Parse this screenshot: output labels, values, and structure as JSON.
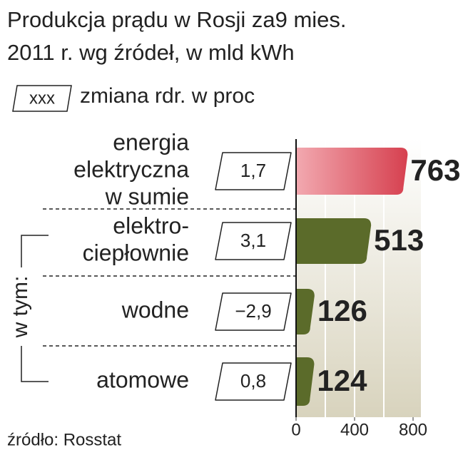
{
  "chart_data": {
    "type": "bar",
    "orientation": "horizontal",
    "title_lines": [
      "Produkcja prądu w Rosji za9 mies.",
      "2011 r. wg źródeł, w mld kWh"
    ],
    "legend": {
      "box_label": "xxx",
      "text": "zmiana rdr. w proc"
    },
    "categories": [
      [
        "energia",
        "elektryczna",
        "w sumie"
      ],
      [
        "elektro-",
        "ciepłownie"
      ],
      [
        "wodne"
      ],
      [
        "atomowe"
      ]
    ],
    "group_label": "w tym:",
    "values": [
      763,
      513,
      126,
      124
    ],
    "colors": [
      "#d6404f",
      "#5b6b2a",
      "#5b6b2a",
      "#5b6b2a"
    ],
    "changes": {
      "values": [
        1.7,
        3.1,
        -2.9,
        0.8
      ],
      "value_labels": [
        "1,7",
        "3,1",
        "−2,9",
        "0,8"
      ]
    },
    "xlim": [
      0,
      800
    ],
    "xticks": [
      0,
      400,
      800
    ],
    "grid_lines": [
      200,
      400,
      600
    ],
    "source": "źródło: Rosstat"
  }
}
